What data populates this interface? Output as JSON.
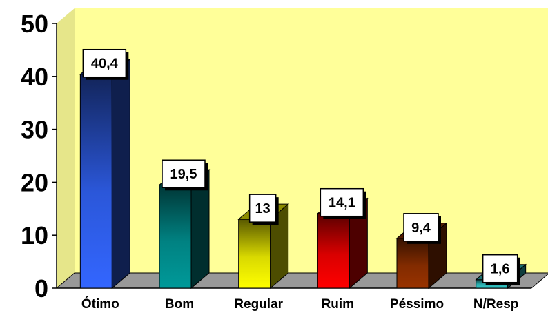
{
  "chart_data": {
    "type": "bar",
    "categories": [
      "Ótimo",
      "Bom",
      "Regular",
      "Ruim",
      "Péssimo",
      "N/Resp"
    ],
    "values": [
      40.4,
      19.5,
      13,
      14.1,
      9.4,
      1.6
    ],
    "value_labels": [
      "40,4",
      "19,5",
      "13",
      "14,1",
      "9,4",
      "1,6"
    ],
    "y_ticks": [
      "0",
      "10",
      "20",
      "30",
      "40",
      "50"
    ],
    "ylim": [
      0,
      50
    ],
    "bar_colors": [
      "#3366ff",
      "#009999",
      "#ffff00",
      "#ff0000",
      "#993300",
      "#33cccc"
    ],
    "wall_color": "#ffff99",
    "floor_color": "#999999",
    "grid": false,
    "style": "3d-bar",
    "title": "",
    "xlabel": "",
    "ylabel": ""
  }
}
